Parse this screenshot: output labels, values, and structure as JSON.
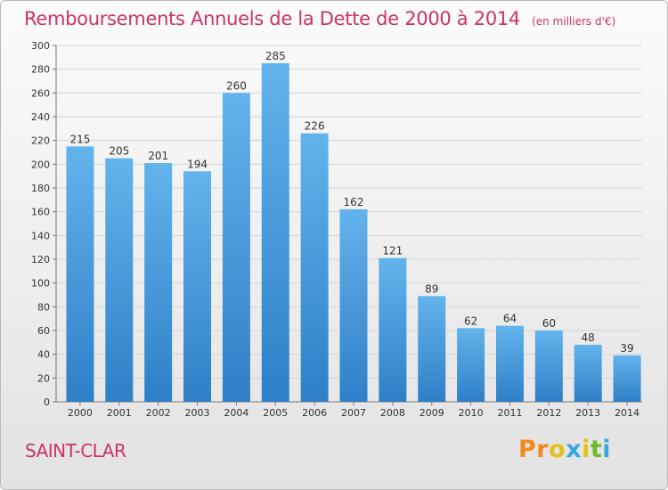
{
  "header": {
    "title": "Remboursements Annuels de la Dette de 2000 à 2014",
    "unit": "(en milliers d'€)"
  },
  "footer": {
    "commune": "SAINT-CLAR",
    "logo_text": "Proxiti"
  },
  "colors": {
    "title": "#cc3366",
    "bar_light": "#63b3ec",
    "bar_dark": "#2f7fc8",
    "logo_letters": [
      "#f08a1c",
      "#f08a1c",
      "#e2c21a",
      "#3aa7e0",
      "#e2c21a",
      "#6cba2e",
      "#3aa7e0"
    ]
  },
  "chart_data": {
    "type": "bar",
    "title": "Remboursements Annuels de la Dette de 2000 à 2014",
    "unit": "(en milliers d'€)",
    "categories": [
      "2000",
      "2001",
      "2002",
      "2003",
      "2004",
      "2005",
      "2006",
      "2007",
      "2008",
      "2009",
      "2010",
      "2011",
      "2012",
      "2013",
      "2014"
    ],
    "values": [
      215,
      205,
      201,
      194,
      260,
      285,
      226,
      162,
      121,
      89,
      62,
      64,
      60,
      48,
      39
    ],
    "ylim": [
      0,
      300
    ],
    "yticks": [
      0,
      20,
      40,
      60,
      80,
      100,
      120,
      140,
      160,
      180,
      200,
      220,
      240,
      260,
      280,
      300
    ],
    "grid": true,
    "data_labels": true
  }
}
